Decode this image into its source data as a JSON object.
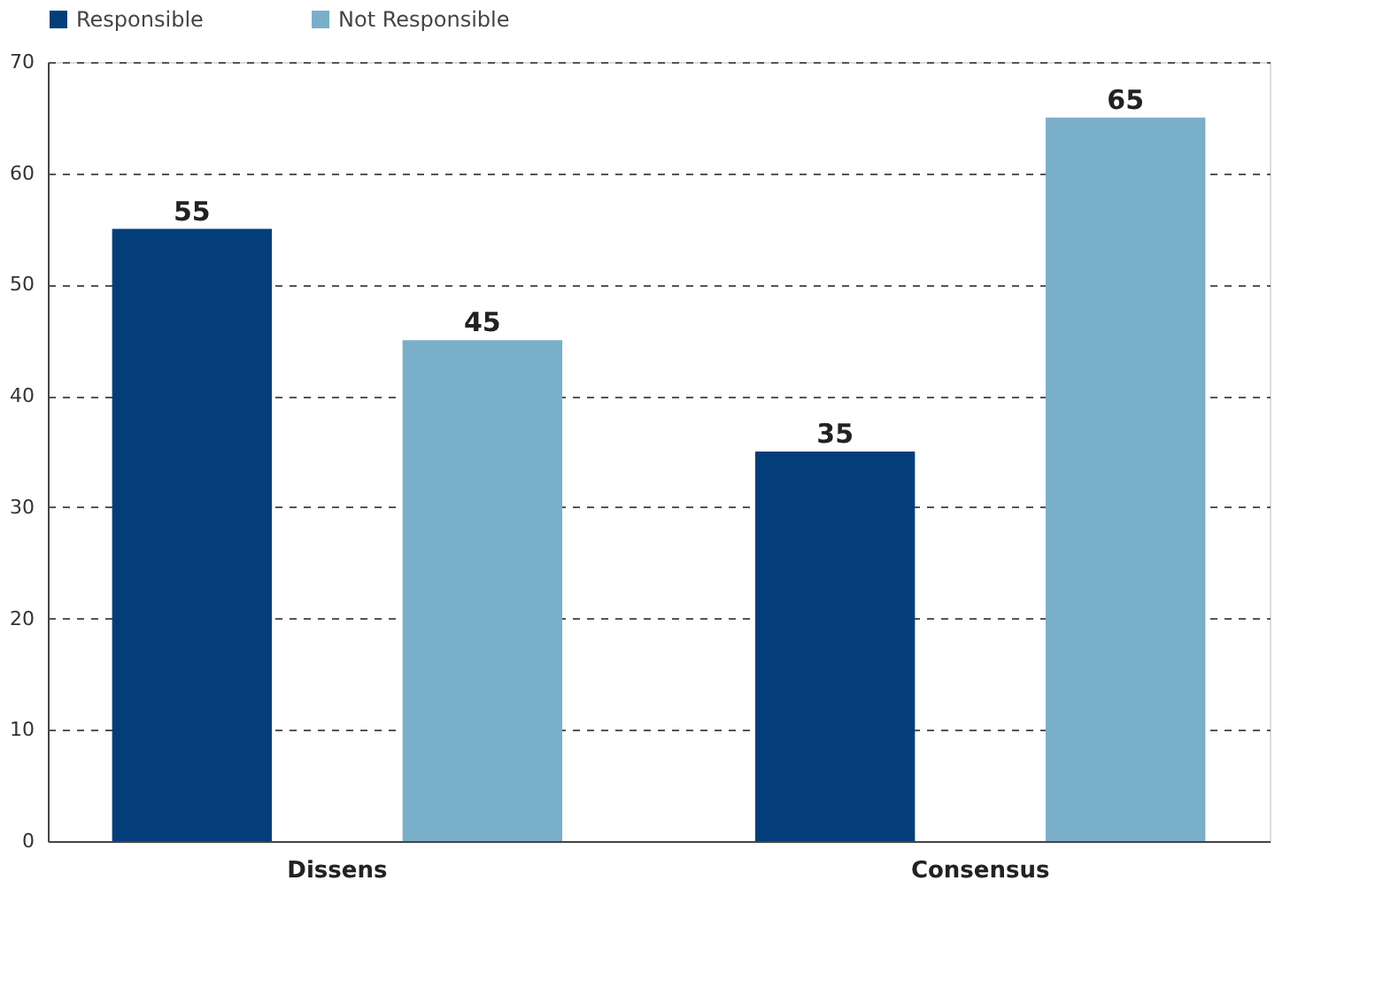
{
  "chart_data": {
    "type": "bar",
    "categories": [
      "Dissens",
      "Consensus"
    ],
    "series": [
      {
        "name": "Responsible",
        "color": "#033e7a",
        "values": [
          55,
          35
        ]
      },
      {
        "name": "Not Responsible",
        "color": "#7aafca",
        "values": [
          45,
          65
        ]
      }
    ],
    "ylim": [
      0,
      70
    ],
    "yticks": [
      0,
      10,
      20,
      30,
      40,
      50,
      60,
      70
    ],
    "grid": "y",
    "legend": "top",
    "data_labels": true
  }
}
